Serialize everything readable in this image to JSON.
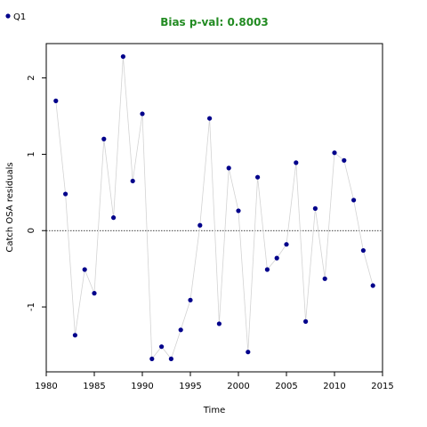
{
  "chart_data": {
    "type": "scatter",
    "title": "Bias p-val: 0.8003",
    "title_color": "#228B22",
    "xlabel": "Time",
    "ylabel": "Catch OSA residuals",
    "xlim": [
      1980,
      2015
    ],
    "ylim": [
      -1.85,
      2.45
    ],
    "x_ticks": [
      1980,
      1985,
      1990,
      1995,
      2000,
      2005,
      2010,
      2015
    ],
    "y_ticks": [
      -1,
      0,
      1,
      2
    ],
    "reference_line": 0,
    "point_color": "#00008B",
    "line_color": "#D3D3D3",
    "legend": {
      "placement": "top-left"
    },
    "series": [
      {
        "name": "Q1",
        "x": [
          1981,
          1982,
          1983,
          1984,
          1985,
          1986,
          1987,
          1988,
          1989,
          1990,
          1991,
          1992,
          1993,
          1994,
          1995,
          1996,
          1997,
          1998,
          1999,
          2000,
          2001,
          2002,
          2003,
          2004,
          2005,
          2006,
          2007,
          2008,
          2009,
          2010,
          2011,
          2012,
          2013,
          2014
        ],
        "y": [
          1.7,
          0.48,
          -1.37,
          -0.51,
          -0.82,
          1.2,
          0.17,
          2.28,
          0.65,
          1.53,
          -1.68,
          -1.52,
          -1.68,
          -1.3,
          -0.91,
          0.07,
          1.47,
          -1.22,
          0.82,
          0.26,
          -1.59,
          0.7,
          -0.51,
          -0.36,
          -0.18,
          0.89,
          -1.19,
          0.29,
          -0.63,
          1.02,
          0.92,
          0.4,
          -0.26,
          -0.72
        ]
      }
    ]
  }
}
